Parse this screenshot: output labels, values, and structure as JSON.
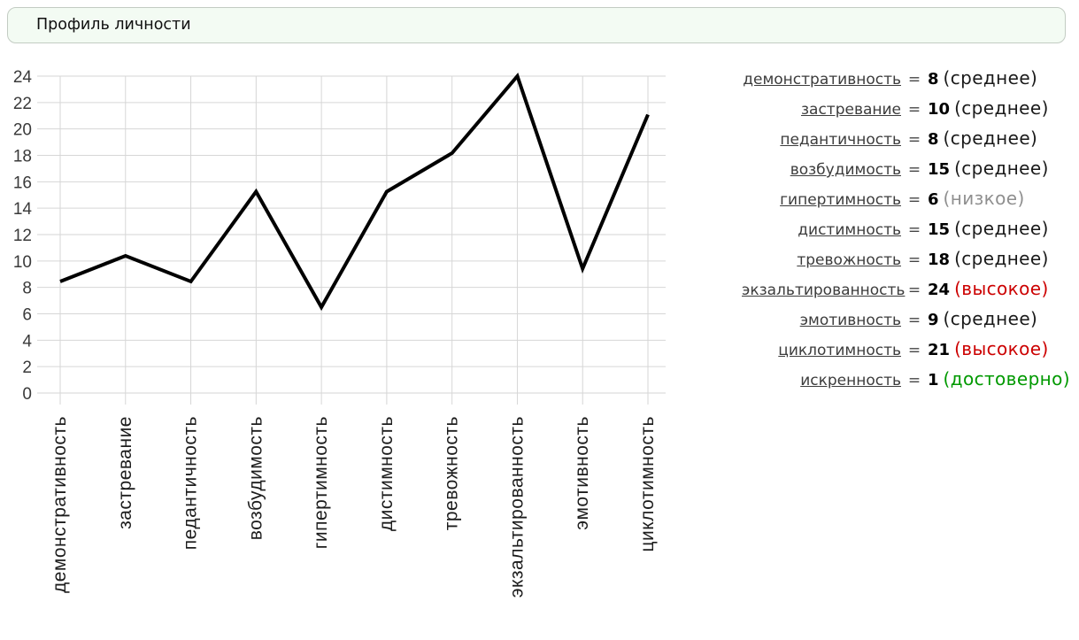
{
  "header": {
    "title": "Профиль личности"
  },
  "chart_data": {
    "type": "line",
    "title": "Профиль личности",
    "categories": [
      "демонстративность",
      "застревание",
      "педантичность",
      "возбудимость",
      "гипертимность",
      "дистимность",
      "тревожность",
      "экзальтированность",
      "эмотивность",
      "циклотимность"
    ],
    "values": [
      8,
      10,
      8,
      15,
      6,
      15,
      18,
      24,
      9,
      21
    ],
    "xlabel": "",
    "ylabel": "",
    "ylim": [
      0,
      24
    ],
    "y_ticks": [
      0,
      2,
      4,
      6,
      8,
      10,
      12,
      14,
      16,
      18,
      20,
      22,
      24
    ],
    "grid": true,
    "legend": false,
    "line_color": "#000000",
    "x_labels_rotated_degrees": -90
  },
  "results": {
    "equals_sign": "=",
    "rows": [
      {
        "name": "демонстративность",
        "value": "8",
        "qualifier": "(среднее)",
        "level": "normal"
      },
      {
        "name": "застревание",
        "value": "10",
        "qualifier": "(среднее)",
        "level": "normal"
      },
      {
        "name": "педантичность",
        "value": "8",
        "qualifier": "(среднее)",
        "level": "normal"
      },
      {
        "name": "возбудимость",
        "value": "15",
        "qualifier": "(среднее)",
        "level": "normal"
      },
      {
        "name": "гипертимность",
        "value": "6",
        "qualifier": "(низкое)",
        "level": "low"
      },
      {
        "name": "дистимность",
        "value": "15",
        "qualifier": "(среднее)",
        "level": "normal"
      },
      {
        "name": "тревожность",
        "value": "18",
        "qualifier": "(среднее)",
        "level": "normal"
      },
      {
        "name": "экзальтированность",
        "value": "24",
        "qualifier": "(высокое)",
        "level": "high"
      },
      {
        "name": "эмотивность",
        "value": "9",
        "qualifier": "(среднее)",
        "level": "normal"
      },
      {
        "name": "циклотимность",
        "value": "21",
        "qualifier": "(высокое)",
        "level": "high"
      },
      {
        "name": "искренность",
        "value": "1",
        "qualifier": "(достоверно)",
        "level": "reliable"
      }
    ]
  },
  "colors": {
    "level_normal": "#1a1a1a",
    "level_low": "#8f8f8f",
    "level_high": "#cc0000",
    "level_reliable": "#009900",
    "trait_link": "#3c3c3c",
    "header_bg": "#f3fbf3",
    "header_border": "#c3ccc3",
    "grid": "#d6d6d6",
    "axis_text": "#3a3a3a",
    "line": "#000000"
  }
}
